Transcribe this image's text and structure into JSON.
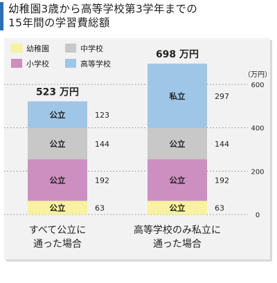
{
  "title": {
    "line1": "幼稚園3歳から高等学校第3学年までの",
    "line2": "15年間の学習費総額"
  },
  "colors": {
    "accent": "#2a6fb7",
    "kindergarten": "#f7f1a0",
    "elementary": "#cc8fbf",
    "junior_high": "#c8c8c8",
    "high_school": "#9fc6e7"
  },
  "chart_data": {
    "type": "bar",
    "stacked": true,
    "title": "",
    "ylabel": "（万円）",
    "ylim": [
      0,
      600
    ],
    "yticks": [
      "0",
      "200",
      "400",
      "600"
    ],
    "grid": "dotted",
    "legend_position": "top-left",
    "legend": [
      {
        "key": "kindergarten",
        "label": "幼稚園"
      },
      {
        "key": "junior_high",
        "label": "中学校"
      },
      {
        "key": "elementary",
        "label": "小学校"
      },
      {
        "key": "high_school",
        "label": "高等学校"
      }
    ],
    "categories": [
      {
        "line1": "すべて公立に",
        "line2": "通った場合",
        "total_label": "523 万円"
      },
      {
        "line1": "高等学校のみ私立に",
        "line2": "通った場合",
        "total_label": "698 万円"
      }
    ],
    "series": [
      {
        "key": "kindergarten",
        "name": "幼稚園",
        "values": [
          63,
          63
        ],
        "values_label": [
          "63",
          "63"
        ],
        "segment_labels": [
          "公立",
          "公立"
        ]
      },
      {
        "key": "elementary",
        "name": "小学校",
        "values": [
          192,
          192
        ],
        "values_label": [
          "192",
          "192"
        ],
        "segment_labels": [
          "公立",
          "公立"
        ]
      },
      {
        "key": "junior_high",
        "name": "中学校",
        "values": [
          144,
          144
        ],
        "values_label": [
          "144",
          "144"
        ],
        "segment_labels": [
          "公立",
          "公立"
        ]
      },
      {
        "key": "high_school",
        "name": "高等学校",
        "values": [
          123,
          297
        ],
        "values_label": [
          "123",
          "297"
        ],
        "segment_labels": [
          "公立",
          "私立"
        ]
      }
    ]
  }
}
